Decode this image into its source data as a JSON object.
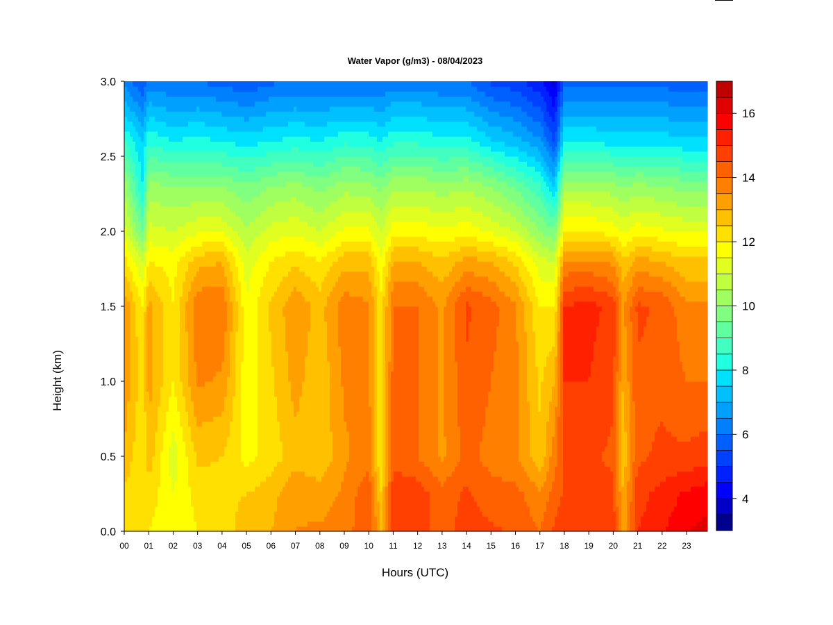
{
  "chart_data": {
    "type": "heatmap",
    "title": "Water Vapor (g/m3) - 08/04/2023",
    "xlabel": "Hours (UTC)",
    "ylabel": "Height (km)",
    "x_ticks": [
      "00",
      "01",
      "02",
      "03",
      "04",
      "05",
      "06",
      "07",
      "08",
      "09",
      "10",
      "11",
      "12",
      "13",
      "14",
      "15",
      "16",
      "17",
      "18",
      "19",
      "20",
      "21",
      "22",
      "23"
    ],
    "y_ticks": [
      "0.0",
      "0.5",
      "1.0",
      "1.5",
      "2.0",
      "2.5",
      "3.0"
    ],
    "xlim": [
      0,
      23.85
    ],
    "ylim": [
      0,
      3.0
    ],
    "colorbar": {
      "ticks": [
        "4",
        "6",
        "8",
        "10",
        "12",
        "14",
        "16"
      ],
      "range": [
        3,
        17
      ],
      "levels": [
        3,
        3.5,
        4,
        4.5,
        5,
        5.5,
        6,
        6.5,
        7,
        7.5,
        8,
        8.5,
        9,
        9.5,
        10,
        10.5,
        11,
        11.5,
        12,
        12.5,
        13,
        13.5,
        14,
        14.5,
        15,
        15.5,
        16,
        16.5,
        17
      ],
      "colors": [
        "#00008f",
        "#0000c8",
        "#0000ff",
        "#0020ff",
        "#0040ff",
        "#0060ff",
        "#0080ff",
        "#00a0ff",
        "#00c0ff",
        "#00e0ff",
        "#20ffe0",
        "#40ffc0",
        "#60ffa0",
        "#80ff80",
        "#a0ff60",
        "#c0ff40",
        "#e0ff20",
        "#ffff00",
        "#ffe000",
        "#ffc000",
        "#ffa000",
        "#ff8000",
        "#ff6000",
        "#ff4000",
        "#ff2000",
        "#ff0000",
        "#e00000",
        "#c00000",
        "#8f0000"
      ]
    },
    "heights_km": [
      0.0,
      0.25,
      0.5,
      1.0,
      1.5,
      1.8,
      2.0,
      2.3,
      2.6,
      3.0
    ],
    "profiles": [
      {
        "hour": 0.0,
        "values": [
          12.0,
          12.4,
          12.9,
          13.4,
          13.4,
          12.2,
          11.3,
          10.3,
          8.5,
          6.3
        ]
      },
      {
        "hour": 0.75,
        "values": [
          12.0,
          12.0,
          12.0,
          12.2,
          12.0,
          11.0,
          9.5,
          8.0,
          7.5,
          5.5
        ]
      },
      {
        "hour": 1.0,
        "values": [
          12.0,
          12.3,
          12.8,
          13.2,
          13.2,
          12.0,
          11.2,
          10.2,
          8.4,
          6.2
        ]
      },
      {
        "hour": 2.0,
        "values": [
          11.6,
          11.5,
          11.2,
          12.0,
          12.0,
          11.8,
          11.0,
          10.0,
          8.0,
          6.0
        ]
      },
      {
        "hour": 3.0,
        "values": [
          12.0,
          12.2,
          12.6,
          13.6,
          13.9,
          12.8,
          11.4,
          10.0,
          8.2,
          6.0
        ]
      },
      {
        "hour": 4.0,
        "values": [
          12.2,
          12.4,
          12.5,
          13.4,
          14.0,
          13.0,
          11.4,
          10.0,
          8.0,
          5.8
        ]
      },
      {
        "hour": 5.0,
        "values": [
          12.8,
          12.5,
          11.8,
          11.7,
          11.6,
          11.2,
          10.6,
          9.6,
          7.8,
          5.6
        ]
      },
      {
        "hour": 6.0,
        "values": [
          13.0,
          12.8,
          12.2,
          12.4,
          12.6,
          12.0,
          11.2,
          10.0,
          8.0,
          5.9
        ]
      },
      {
        "hour": 7.0,
        "values": [
          13.5,
          13.4,
          12.8,
          13.2,
          13.4,
          12.4,
          11.4,
          10.2,
          8.2,
          6.0
        ]
      },
      {
        "hour": 8.0,
        "values": [
          13.6,
          13.2,
          12.6,
          12.6,
          12.8,
          12.0,
          11.0,
          9.8,
          8.0,
          6.0
        ]
      },
      {
        "hour": 9.0,
        "values": [
          13.8,
          13.6,
          13.4,
          13.6,
          13.8,
          12.8,
          11.6,
          10.3,
          8.4,
          6.0
        ]
      },
      {
        "hour": 10.0,
        "values": [
          14.4,
          14.4,
          13.8,
          13.6,
          13.6,
          12.8,
          11.6,
          10.2,
          8.3,
          6.0
        ]
      },
      {
        "hour": 10.5,
        "values": [
          13.0,
          12.5,
          12.0,
          12.0,
          12.2,
          11.6,
          11.0,
          9.8,
          8.0,
          6.0
        ]
      },
      {
        "hour": 11.0,
        "values": [
          14.8,
          15.0,
          14.2,
          14.2,
          14.0,
          13.0,
          11.8,
          10.4,
          8.4,
          6.2
        ]
      },
      {
        "hour": 12.0,
        "values": [
          14.8,
          14.8,
          14.0,
          14.0,
          14.0,
          13.0,
          11.8,
          10.4,
          8.4,
          6.2
        ]
      },
      {
        "hour": 13.0,
        "values": [
          14.2,
          14.2,
          13.4,
          13.4,
          13.4,
          12.6,
          11.6,
          10.2,
          8.2,
          6.0
        ]
      },
      {
        "hour": 14.0,
        "values": [
          14.8,
          14.6,
          14.2,
          14.4,
          14.6,
          13.2,
          11.8,
          10.4,
          8.2,
          6.0
        ]
      },
      {
        "hour": 15.0,
        "values": [
          14.6,
          14.2,
          13.8,
          14.0,
          14.2,
          13.0,
          11.4,
          10.0,
          7.6,
          5.4
        ]
      },
      {
        "hour": 16.0,
        "values": [
          14.4,
          14.2,
          13.6,
          13.6,
          13.6,
          12.4,
          11.0,
          9.4,
          7.2,
          5.2
        ]
      },
      {
        "hour": 17.0,
        "values": [
          14.0,
          13.6,
          12.6,
          12.4,
          12.0,
          11.2,
          10.0,
          8.6,
          6.6,
          4.6
        ]
      },
      {
        "hour": 17.6,
        "values": [
          14.6,
          14.2,
          13.8,
          13.0,
          12.0,
          11.0,
          9.6,
          7.4,
          5.4,
          3.8
        ]
      },
      {
        "hour": 18.0,
        "values": [
          15.0,
          14.6,
          14.6,
          15.0,
          15.0,
          13.6,
          12.0,
          10.4,
          8.0,
          5.8
        ]
      },
      {
        "hour": 19.0,
        "values": [
          15.0,
          14.8,
          14.6,
          15.0,
          15.2,
          13.6,
          12.0,
          10.4,
          8.0,
          5.8
        ]
      },
      {
        "hour": 20.0,
        "values": [
          14.8,
          14.6,
          14.4,
          14.6,
          14.8,
          13.4,
          11.8,
          10.2,
          7.8,
          5.8
        ]
      },
      {
        "hour": 20.4,
        "values": [
          13.0,
          13.0,
          12.6,
          13.0,
          13.4,
          12.6,
          11.4,
          10.0,
          7.8,
          5.8
        ]
      },
      {
        "hour": 21.0,
        "values": [
          15.0,
          14.8,
          14.4,
          14.4,
          14.6,
          13.2,
          11.8,
          10.2,
          7.8,
          5.8
        ]
      },
      {
        "hour": 22.0,
        "values": [
          15.4,
          15.2,
          14.6,
          14.4,
          14.4,
          13.0,
          11.6,
          10.0,
          7.8,
          5.8
        ]
      },
      {
        "hour": 23.0,
        "values": [
          16.0,
          15.6,
          14.6,
          14.0,
          13.6,
          12.6,
          11.4,
          9.8,
          7.6,
          5.6
        ]
      },
      {
        "hour": 23.85,
        "values": [
          16.2,
          15.8,
          14.8,
          14.0,
          13.6,
          12.6,
          11.4,
          9.8,
          7.6,
          5.6
        ]
      }
    ]
  }
}
